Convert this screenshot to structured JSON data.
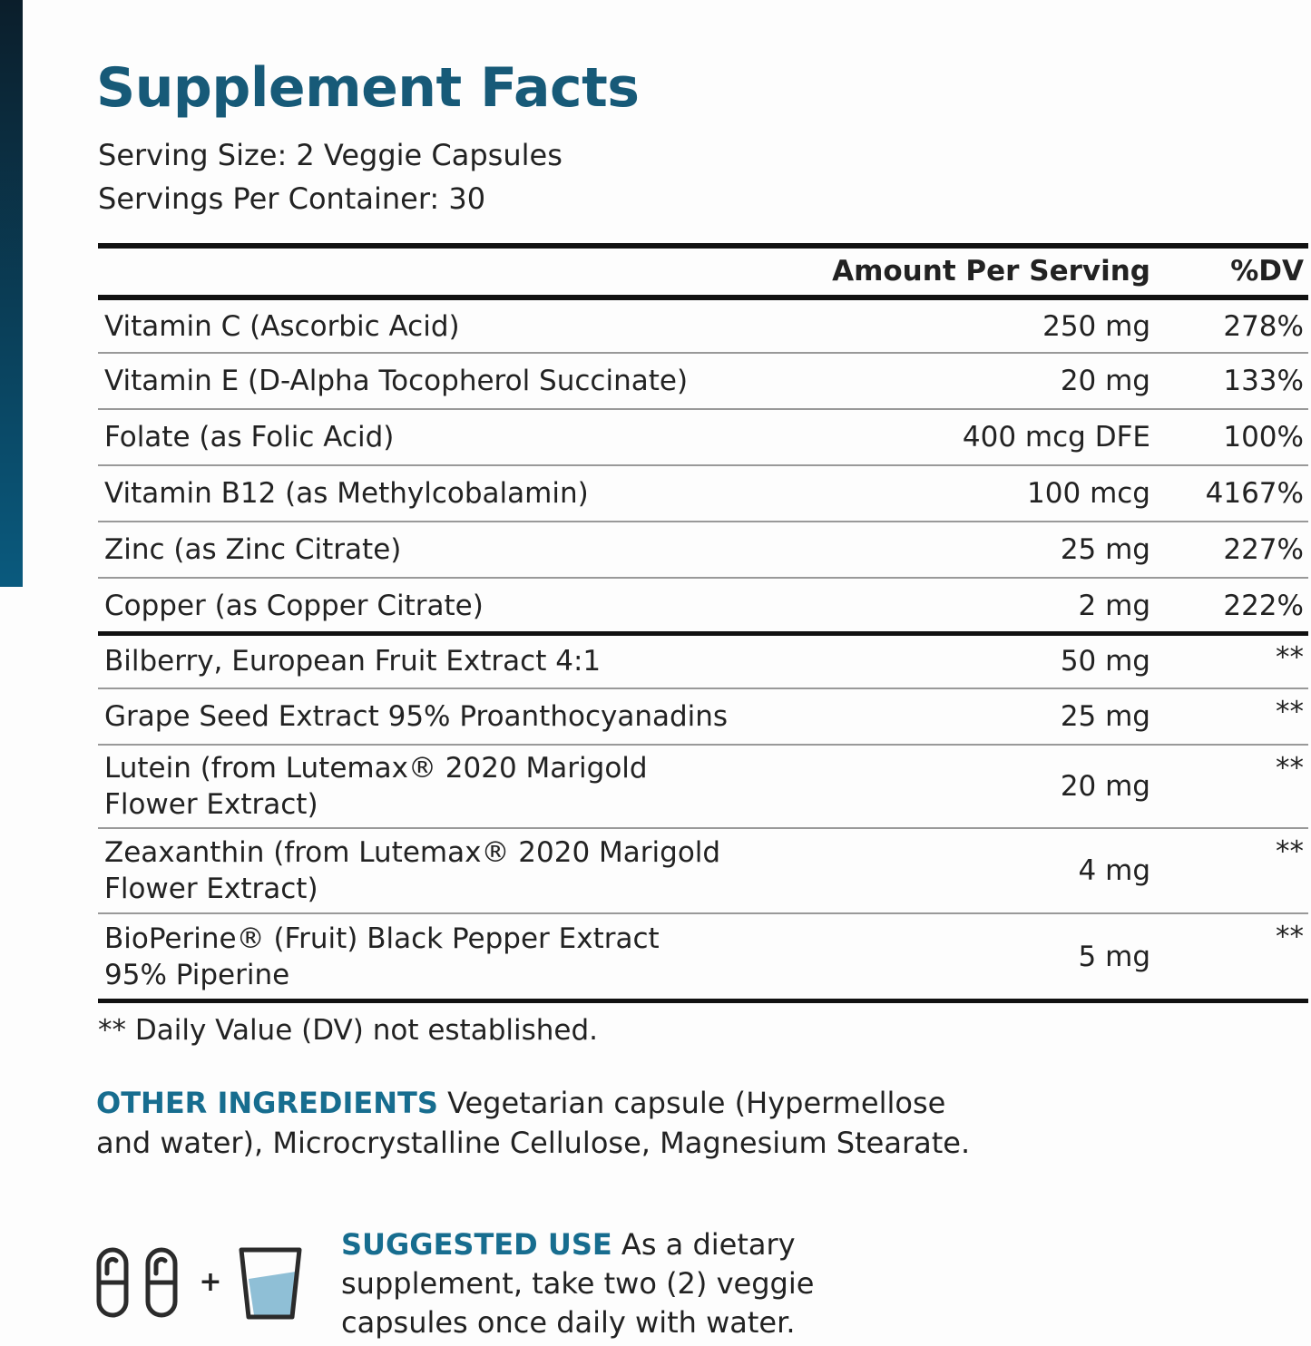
{
  "title": "Supplement Facts",
  "serving": [
    "Serving Size: 2 Veggie Capsules",
    "Servings Per Container: 30"
  ],
  "table": {
    "header": [
      "Amount Per Serving",
      "%DV"
    ],
    "rows": [
      {
        "name": [
          "Vitamin C (Ascorbic Acid)"
        ],
        "amount": "250 mg",
        "dv": "278%"
      },
      {
        "name": [
          "Vitamin E (D-Alpha Tocopherol Succinate)"
        ],
        "amount": "20 mg",
        "dv": "133%"
      },
      {
        "name": [
          "Folate (as Folic Acid)"
        ],
        "amount": "400 mcg DFE",
        "dv": "100%"
      },
      {
        "name": [
          "Vitamin B12 (as Methylcobalamin)"
        ],
        "amount": "100 mcg",
        "dv": "4167%"
      },
      {
        "name": [
          "Zinc (as Zinc Citrate)"
        ],
        "amount": "25 mg",
        "dv": "227%"
      },
      {
        "name": [
          "Copper (as Copper Citrate)"
        ],
        "amount": "2 mg",
        "dv": "222%"
      },
      {
        "name": [
          "Bilberry, European Fruit Extract 4:1"
        ],
        "amount": "50 mg",
        "dv": "**"
      },
      {
        "name": [
          "Grape Seed Extract 95% Proanthocyanadins"
        ],
        "amount": "25 mg",
        "dv": "**"
      },
      {
        "name": [
          "Lutein (from Lutemax® 2020 Marigold",
          "Flower Extract)"
        ],
        "amount": "20 mg",
        "dv": "**"
      },
      {
        "name": [
          "Zeaxanthin (from Lutemax® 2020 Marigold",
          "Flower Extract)"
        ],
        "amount": "4 mg",
        "dv": "**"
      },
      {
        "name": [
          "BioPerine® (Fruit) Black Pepper Extract",
          "95% Piperine"
        ],
        "amount": "5 mg",
        "dv": "**"
      }
    ]
  },
  "footnote": "** Daily Value (DV) not established.",
  "other_ingredients": {
    "label": "OTHER INGREDIENTS",
    "lines": [
      "Vegetarian capsule (Hypermellose",
      "and water), Microcrystalline Cellulose, Magnesium Stearate."
    ]
  },
  "suggested_use": {
    "label": "SUGGESTED USE",
    "lines": [
      "As a dietary",
      "supplement, take two (2) veggie",
      "capsules once daily with water."
    ]
  },
  "icon_plus": "+"
}
